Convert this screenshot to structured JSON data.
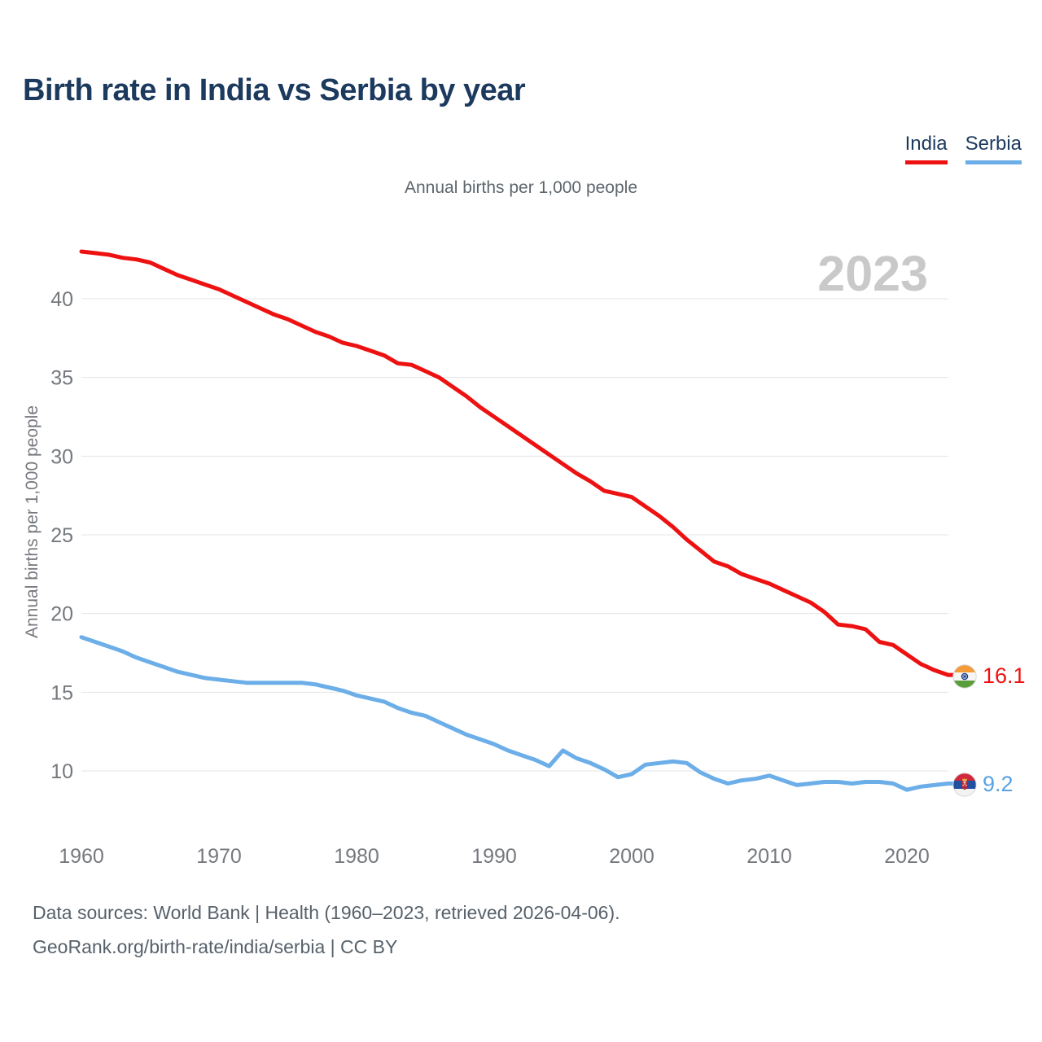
{
  "header": {
    "title": "Birth rate in India vs Serbia by year",
    "subtitle": "Annual births per 1,000 people"
  },
  "legend": {
    "items": [
      {
        "label": "India",
        "color": "#ee1111"
      },
      {
        "label": "Serbia",
        "color": "#6caee8"
      }
    ]
  },
  "watermark": "2023",
  "end_labels": [
    {
      "series": "India",
      "value": "16.1",
      "color": "#ee1111",
      "flag": "india-flag-icon"
    },
    {
      "series": "Serbia",
      "value": "9.2",
      "color": "#58a3e4",
      "flag": "serbia-flag-icon"
    }
  ],
  "footer": {
    "line1": "Data sources: World Bank | Health (1960–2023, retrieved 2026-04-06).",
    "line2": "GeoRank.org/birth-rate/india/serbia | CC BY"
  },
  "chart_data": {
    "type": "line",
    "title": "Birth rate in India vs Serbia by year",
    "subtitle": "Annual births per 1,000 people",
    "xlabel": "",
    "ylabel": "Annual births per 1,000 people",
    "x_ticks": [
      1960,
      1970,
      1980,
      1990,
      2000,
      2010,
      2020
    ],
    "y_ticks": [
      10,
      15,
      20,
      25,
      30,
      35,
      40
    ],
    "xlim": [
      1960,
      2023
    ],
    "ylim": [
      8,
      44.5
    ],
    "grid": true,
    "legend_position": "top-right",
    "x": [
      1960,
      1961,
      1962,
      1963,
      1964,
      1965,
      1966,
      1967,
      1968,
      1969,
      1970,
      1971,
      1972,
      1973,
      1974,
      1975,
      1976,
      1977,
      1978,
      1979,
      1980,
      1981,
      1982,
      1983,
      1984,
      1985,
      1986,
      1987,
      1988,
      1989,
      1990,
      1991,
      1992,
      1993,
      1994,
      1995,
      1996,
      1997,
      1998,
      1999,
      2000,
      2001,
      2002,
      2003,
      2004,
      2005,
      2006,
      2007,
      2008,
      2009,
      2010,
      2011,
      2012,
      2013,
      2014,
      2015,
      2016,
      2017,
      2018,
      2019,
      2020,
      2021,
      2022,
      2023
    ],
    "series": [
      {
        "name": "India",
        "color": "#ee1111",
        "end_value": 16.1,
        "values": [
          43.0,
          42.9,
          42.8,
          42.6,
          42.5,
          42.3,
          41.9,
          41.5,
          41.2,
          40.9,
          40.6,
          40.2,
          39.8,
          39.4,
          39.0,
          38.7,
          38.3,
          37.9,
          37.6,
          37.2,
          37.0,
          36.7,
          36.4,
          35.9,
          35.8,
          35.4,
          35.0,
          34.4,
          33.8,
          33.1,
          32.5,
          31.9,
          31.3,
          30.7,
          30.1,
          29.5,
          28.9,
          28.4,
          27.8,
          27.6,
          27.4,
          26.8,
          26.2,
          25.5,
          24.7,
          24.0,
          23.3,
          23.0,
          22.5,
          22.2,
          21.9,
          21.5,
          21.1,
          20.7,
          20.1,
          19.3,
          19.2,
          19.0,
          18.2,
          18.0,
          17.4,
          16.8,
          16.4,
          16.1
        ]
      },
      {
        "name": "Serbia",
        "color": "#6caee8",
        "end_value": 9.2,
        "values": [
          18.5,
          18.2,
          17.9,
          17.6,
          17.2,
          16.9,
          16.6,
          16.3,
          16.1,
          15.9,
          15.8,
          15.7,
          15.6,
          15.6,
          15.6,
          15.6,
          15.6,
          15.5,
          15.3,
          15.1,
          14.8,
          14.6,
          14.4,
          14.0,
          13.7,
          13.5,
          13.1,
          12.7,
          12.3,
          12.0,
          11.7,
          11.3,
          11.0,
          10.7,
          10.3,
          11.3,
          10.8,
          10.5,
          10.1,
          9.6,
          9.8,
          10.4,
          10.5,
          10.6,
          10.5,
          9.9,
          9.5,
          9.2,
          9.4,
          9.5,
          9.7,
          9.4,
          9.1,
          9.2,
          9.3,
          9.3,
          9.2,
          9.3,
          9.3,
          9.2,
          8.8,
          9.0,
          9.1,
          9.2
        ]
      }
    ]
  }
}
